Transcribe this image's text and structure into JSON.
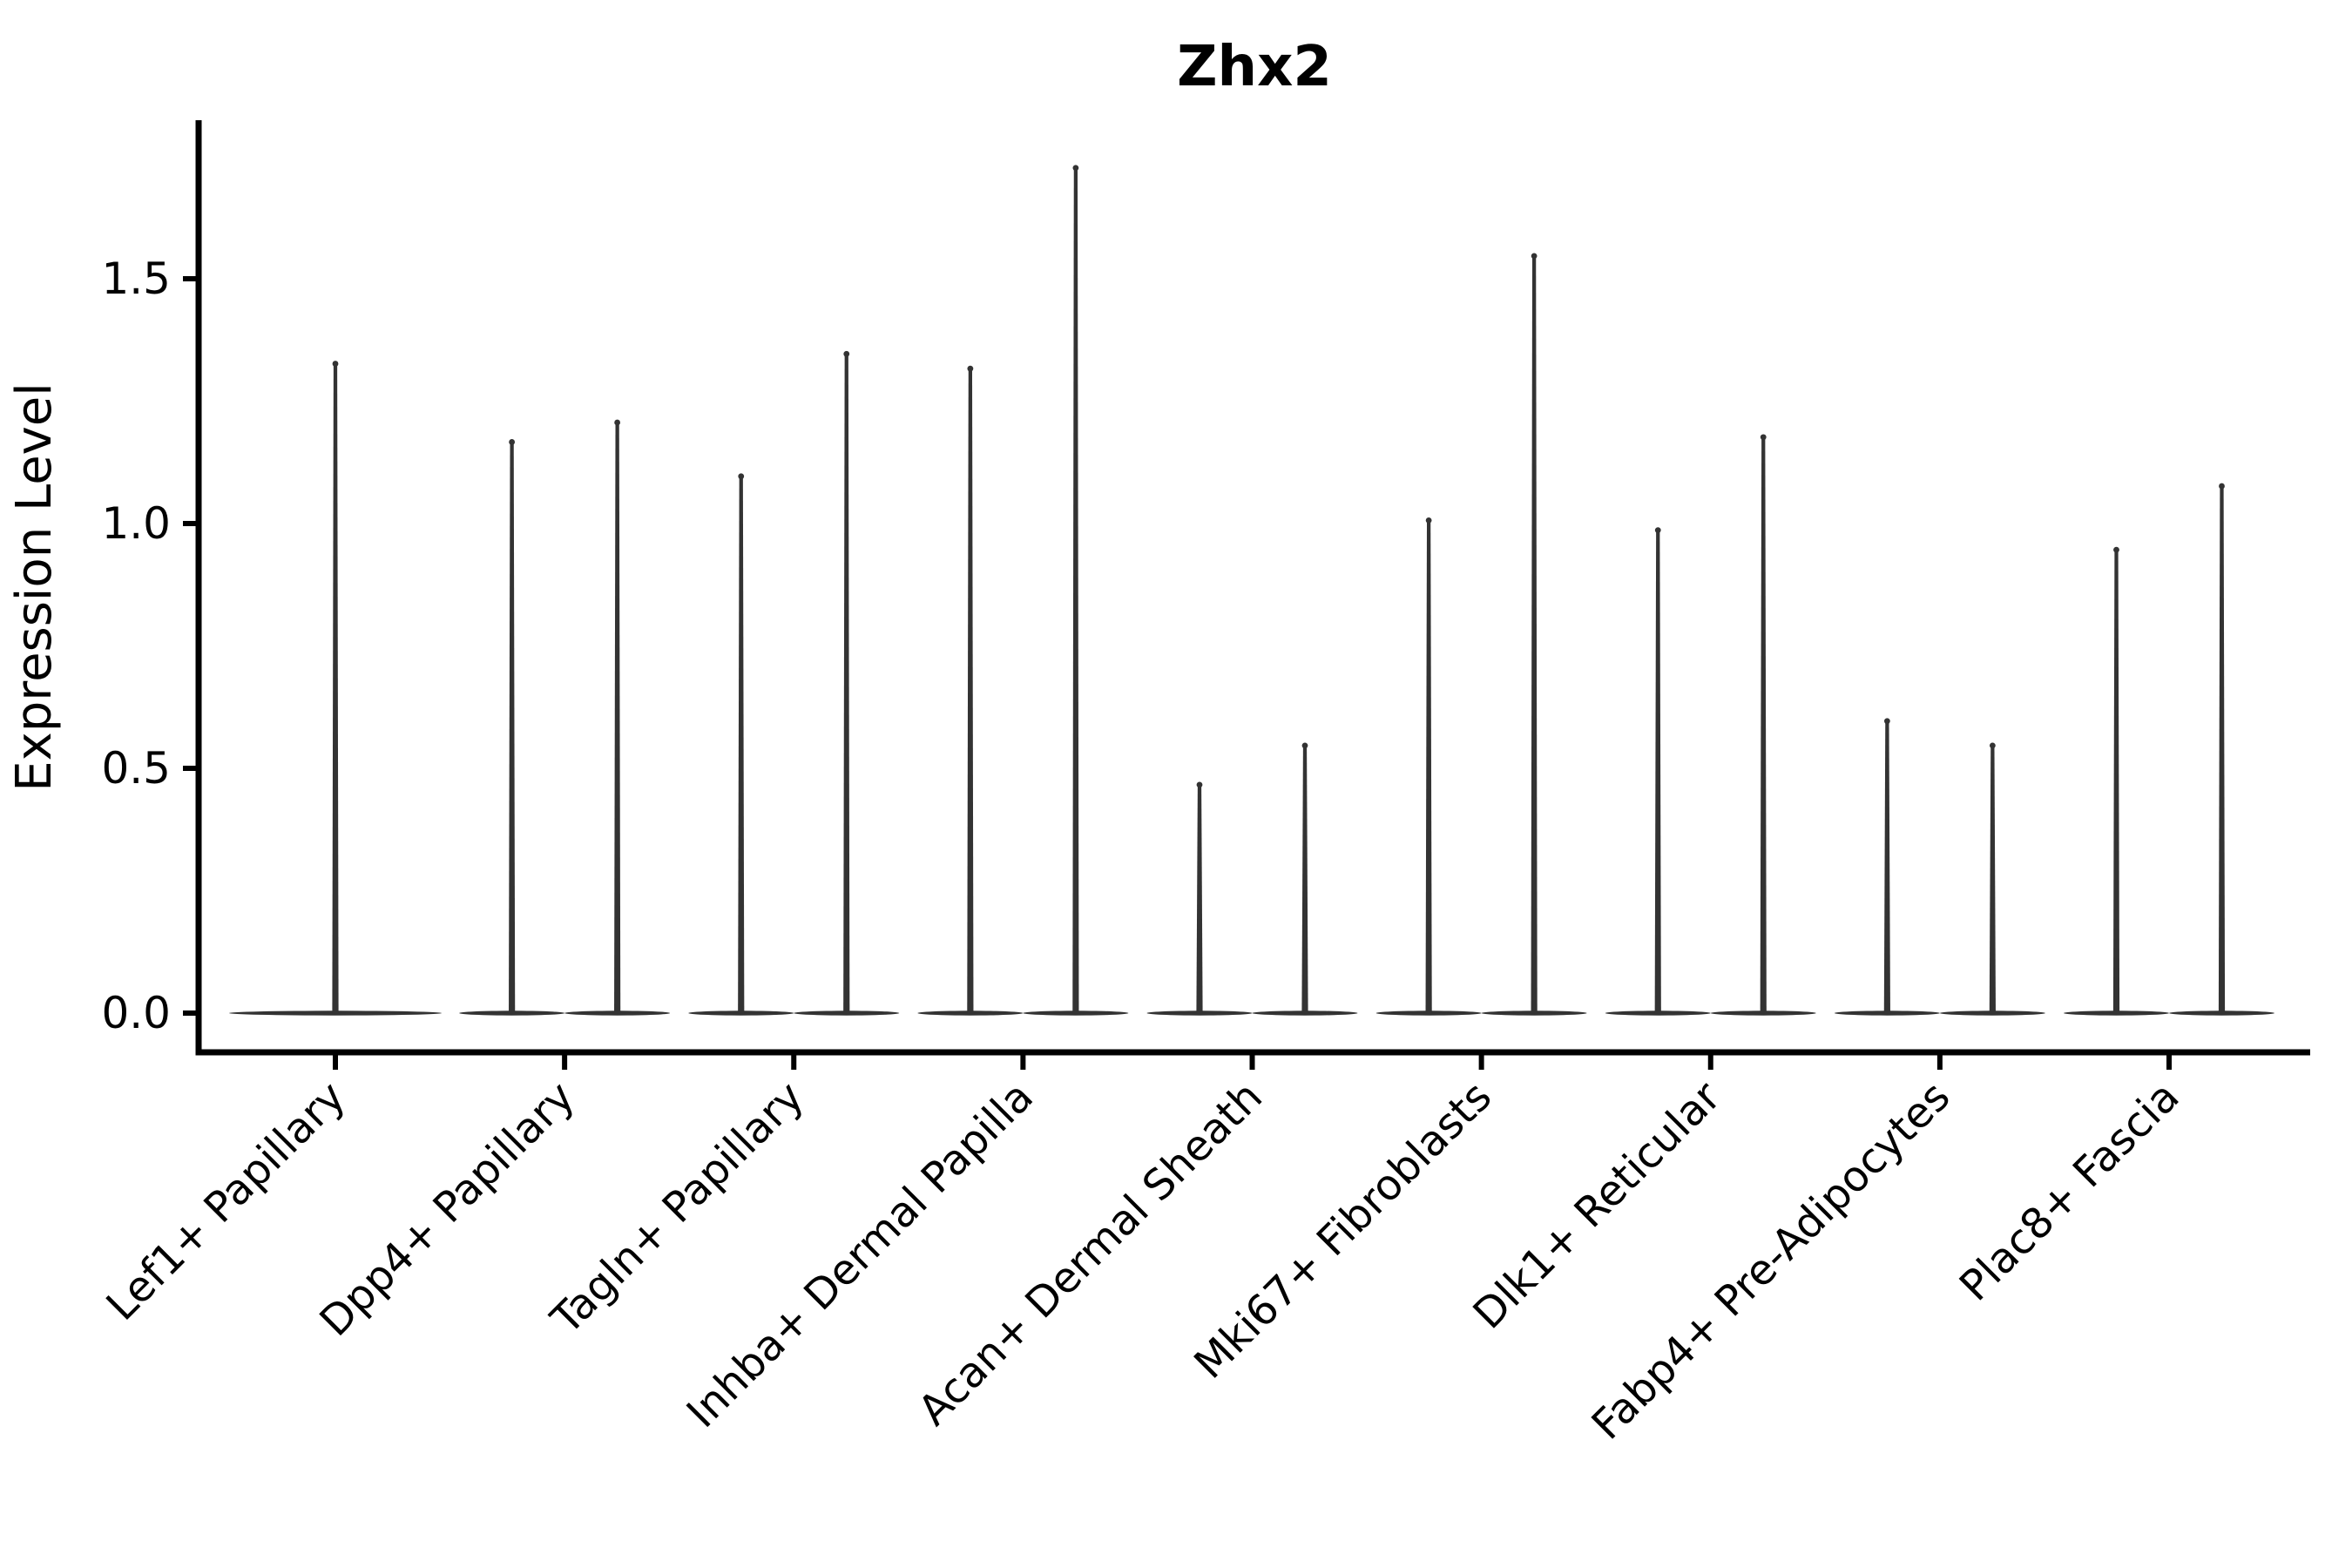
{
  "chart_data": {
    "type": "violin",
    "title": "Zhx2",
    "xlabel": "",
    "ylabel": "Expression Level",
    "ylim": [
      -0.08,
      1.82
    ],
    "grid": false,
    "legend": null,
    "y_ticks": [
      {
        "value": 0.0,
        "label": "0.0"
      },
      {
        "value": 0.5,
        "label": "0.5"
      },
      {
        "value": 1.0,
        "label": "1.0"
      },
      {
        "value": 1.5,
        "label": "1.5"
      }
    ],
    "x_tick_rotation_deg": 45,
    "categories": [
      "Lef1+ Papillary",
      "Dpp4+ Papillary",
      "Tagln+ Papillary",
      "Inhba+ Dermal Papilla",
      "Acan+ Dermal Sheath",
      "Mki67+ Fibroblasts",
      "Dlk1+ Reticular",
      "Fabp4+ Pre-Adipocytes",
      "Plac8+ Fascia"
    ],
    "series": [
      {
        "category": "Lef1+ Papillary",
        "violin_baseline_value": 0.0,
        "violin_max": [
          1.33
        ]
      },
      {
        "category": "Dpp4+ Papillary",
        "violin_baseline_value": 0.0,
        "violin_max": [
          1.17,
          1.21
        ]
      },
      {
        "category": "Tagln+ Papillary",
        "violin_baseline_value": 0.0,
        "violin_max": [
          1.1,
          1.35
        ]
      },
      {
        "category": "Inhba+ Dermal Papilla",
        "violin_baseline_value": 0.0,
        "violin_max": [
          1.32,
          1.73
        ]
      },
      {
        "category": "Acan+ Dermal Sheath",
        "violin_baseline_value": 0.0,
        "violin_max": [
          0.47,
          0.55
        ]
      },
      {
        "category": "Mki67+ Fibroblasts",
        "violin_baseline_value": 0.0,
        "violin_max": [
          1.01,
          1.55
        ]
      },
      {
        "category": "Dlk1+ Reticular",
        "violin_baseline_value": 0.0,
        "violin_max": [
          0.99,
          1.18
        ]
      },
      {
        "category": "Fabp4+ Pre-Adipocytes",
        "violin_baseline_value": 0.0,
        "violin_max": [
          0.6,
          0.55
        ]
      },
      {
        "category": "Plac8+ Fascia",
        "violin_baseline_value": 0.0,
        "violin_max": [
          0.95,
          1.08
        ]
      }
    ],
    "colors": {
      "violin": "#333333",
      "axis": "#000000",
      "text": "#000000",
      "background": "#ffffff"
    }
  }
}
